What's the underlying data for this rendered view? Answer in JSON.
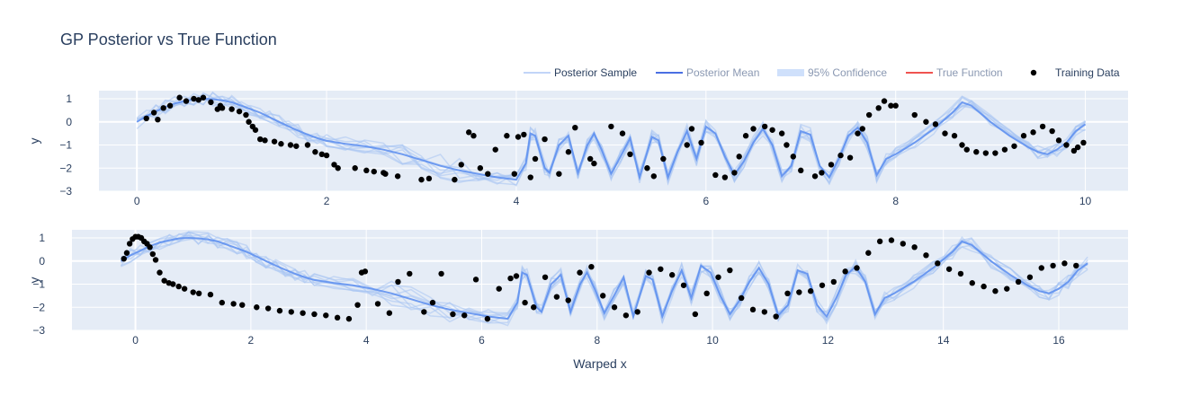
{
  "chart_data": {
    "type": "line",
    "title": "GP Posterior vs True Function",
    "legend": {
      "placement": "top-right",
      "items": [
        {
          "label": "Posterior Sample",
          "color": "#aec7f5",
          "style": "line-faint",
          "active": true
        },
        {
          "label": "Posterior Mean",
          "color": "#4a6fe3",
          "style": "line",
          "active": false
        },
        {
          "label": "95% Confidence",
          "color": "#cfe0fb",
          "style": "band",
          "active": false
        },
        {
          "label": "True Function",
          "color": "#ef5350",
          "style": "line",
          "active": false
        },
        {
          "label": "Training Data",
          "color": "#000000",
          "style": "marker",
          "active": true
        }
      ]
    },
    "panels": [
      {
        "xlabel": "",
        "ylabel": "y",
        "xlim": [
          -0.4,
          10.45
        ],
        "ylim": [
          -3,
          1.35
        ],
        "xticks": [
          0,
          2,
          4,
          6,
          8,
          10
        ],
        "yticks": [
          1,
          0,
          -1,
          -2,
          -3
        ],
        "grid": true
      },
      {
        "xlabel": "Warped x",
        "ylabel": "y",
        "xlim": [
          -1.1,
          17.2
        ],
        "ylim": [
          -3,
          1.35
        ],
        "xticks": [
          0,
          2,
          4,
          6,
          8,
          10,
          12,
          14,
          16
        ],
        "yticks": [
          1,
          0,
          -1,
          -2,
          -3
        ],
        "grid": true
      }
    ],
    "mean_curve": {
      "x": [
        0,
        0.1,
        0.2,
        0.3,
        0.4,
        0.5,
        0.6,
        0.7,
        0.8,
        0.9,
        1.0,
        1.1,
        1.2,
        1.3,
        1.4,
        1.5,
        1.6,
        1.7,
        1.8,
        1.9,
        2.0,
        2.2,
        2.4,
        2.6,
        2.8,
        3.0,
        3.2,
        3.4,
        3.6,
        3.8,
        4.0,
        4.1,
        4.15,
        4.2,
        4.3,
        4.35,
        4.45,
        4.55,
        4.65,
        4.75,
        4.82,
        4.9,
        5.0,
        5.1,
        5.2,
        5.3,
        5.43,
        5.5,
        5.6,
        5.7,
        5.8,
        5.9,
        6.0,
        6.1,
        6.2,
        6.3,
        6.4,
        6.5,
        6.6,
        6.7,
        6.8,
        6.9,
        7.0,
        7.1,
        7.2,
        7.3,
        7.4,
        7.5,
        7.6,
        7.7,
        7.8,
        7.9,
        8.0,
        8.2,
        8.4,
        8.6,
        8.7,
        8.8,
        9.0,
        9.2,
        9.4,
        9.5,
        9.6,
        9.7,
        9.8,
        9.9,
        10.0
      ],
      "y": [
        0.0,
        0.25,
        0.45,
        0.65,
        0.8,
        0.9,
        0.98,
        1.0,
        0.98,
        0.93,
        0.85,
        0.7,
        0.55,
        0.4,
        0.2,
        0.0,
        -0.2,
        -0.38,
        -0.55,
        -0.7,
        -0.82,
        -0.95,
        -1.05,
        -1.2,
        -1.4,
        -1.65,
        -1.9,
        -2.1,
        -2.25,
        -2.4,
        -2.5,
        -1.8,
        -0.5,
        -0.6,
        -2.0,
        -2.2,
        -1.0,
        -0.6,
        -2.2,
        -1.0,
        -0.5,
        -1.2,
        -2.25,
        -1.5,
        -0.7,
        -2.4,
        -0.65,
        -0.8,
        -2.4,
        -1.3,
        -0.4,
        -1.6,
        -0.2,
        -0.5,
        -1.5,
        -2.3,
        -1.7,
        -0.9,
        -0.3,
        -1.0,
        -2.35,
        -1.9,
        -0.4,
        -0.55,
        -1.9,
        -2.4,
        -1.6,
        -0.6,
        -0.25,
        -0.9,
        -2.3,
        -1.6,
        -1.4,
        -0.9,
        -0.3,
        0.4,
        0.85,
        0.7,
        0.0,
        -0.6,
        -1.1,
        -1.3,
        -1.4,
        -1.2,
        -0.9,
        -0.4,
        -0.1
      ]
    },
    "training_data_panel1": {
      "x": [
        0.1,
        0.18,
        0.22,
        0.28,
        0.35,
        0.45,
        0.52,
        0.6,
        0.65,
        0.7,
        0.78,
        0.85,
        0.88,
        0.9,
        1.0,
        1.08,
        1.15,
        1.18,
        1.22,
        1.25,
        1.3,
        1.35,
        1.45,
        1.52,
        1.62,
        1.68,
        1.8,
        1.88,
        1.95,
        2.0,
        2.08,
        2.12,
        2.3,
        2.42,
        2.5,
        2.6,
        2.62,
        2.75,
        3.0,
        3.08,
        3.35,
        3.42,
        3.5,
        3.55,
        3.62,
        3.7,
        3.78,
        3.9,
        3.98,
        4.02,
        4.08,
        4.15,
        4.2,
        4.3,
        4.45,
        4.55,
        4.62,
        4.78,
        4.82,
        5.0,
        5.12,
        5.2,
        5.38,
        5.45,
        5.55,
        5.8,
        5.85,
        5.95,
        6.1,
        6.2,
        6.3,
        6.35,
        6.42,
        6.5,
        6.62,
        6.7,
        6.8,
        6.85,
        6.92,
        7.0,
        7.15,
        7.22,
        7.32,
        7.42,
        7.52,
        7.6,
        7.65,
        7.72,
        7.82,
        7.88,
        7.95,
        8.0,
        8.2,
        8.32,
        8.42,
        8.52,
        8.62,
        8.7,
        8.75,
        8.85,
        8.95,
        9.05,
        9.15,
        9.25,
        9.35,
        9.45,
        9.55,
        9.65,
        9.72,
        9.8,
        9.88,
        9.92,
        9.98
      ],
      "y": [
        0.15,
        0.4,
        0.1,
        0.6,
        0.7,
        1.05,
        0.9,
        1.0,
        0.95,
        1.05,
        0.85,
        0.55,
        0.7,
        0.6,
        0.55,
        0.45,
        0.3,
        0.0,
        -0.2,
        -0.35,
        -0.75,
        -0.8,
        -0.85,
        -0.95,
        -1.0,
        -1.05,
        -1.0,
        -1.3,
        -1.4,
        -1.45,
        -1.85,
        -2.0,
        -2.0,
        -2.1,
        -2.15,
        -2.2,
        -2.25,
        -2.35,
        -2.5,
        -2.45,
        -2.5,
        -1.85,
        -0.45,
        -0.6,
        -2.0,
        -2.25,
        -1.2,
        -0.6,
        -2.25,
        -0.65,
        -0.55,
        -2.4,
        -1.6,
        -0.75,
        -2.25,
        -1.3,
        -0.25,
        -1.6,
        -1.8,
        -0.2,
        -0.5,
        -1.4,
        -2.0,
        -2.35,
        -1.6,
        -1.0,
        -0.3,
        -0.9,
        -2.3,
        -2.4,
        -2.2,
        -1.5,
        -0.6,
        -0.3,
        -0.2,
        -0.35,
        -0.5,
        -1.0,
        -1.5,
        -2.1,
        -2.35,
        -2.2,
        -1.85,
        -1.45,
        -1.55,
        -0.5,
        -0.3,
        0.3,
        0.6,
        0.9,
        0.7,
        0.7,
        0.3,
        0.0,
        -0.1,
        -0.5,
        -0.6,
        -1.0,
        -1.2,
        -1.3,
        -1.35,
        -1.35,
        -1.2,
        -1.05,
        -0.6,
        -0.45,
        -0.2,
        -0.4,
        -0.8,
        -1.0,
        -1.25,
        -1.1,
        -0.9
      ]
    },
    "training_data_panel2": {
      "x": [
        -0.2,
        -0.15,
        -0.1,
        -0.05,
        0.0,
        0.05,
        0.1,
        0.15,
        0.2,
        0.25,
        0.3,
        0.35,
        0.42,
        0.5,
        0.58,
        0.65,
        0.75,
        0.85,
        1.0,
        1.1,
        1.3,
        1.5,
        1.7,
        1.85,
        2.1,
        2.3,
        2.5,
        2.7,
        2.9,
        3.1,
        3.3,
        3.5,
        3.7,
        3.85,
        3.92,
        3.98,
        4.2,
        4.4,
        4.55,
        4.75,
        5.0,
        5.15,
        5.3,
        5.5,
        5.7,
        5.9,
        6.1,
        6.3,
        6.5,
        6.6,
        6.75,
        6.9,
        7.1,
        7.3,
        7.5,
        7.7,
        7.9,
        8.1,
        8.3,
        8.5,
        8.7,
        8.9,
        9.1,
        9.3,
        9.5,
        9.7,
        9.9,
        10.1,
        10.3,
        10.5,
        10.7,
        10.9,
        11.1,
        11.3,
        11.5,
        11.7,
        11.9,
        12.1,
        12.3,
        12.5,
        12.7,
        12.9,
        13.1,
        13.3,
        13.5,
        13.7,
        13.9,
        14.1,
        14.3,
        14.5,
        14.7,
        14.9,
        15.1,
        15.3,
        15.5,
        15.7,
        15.9,
        16.1,
        16.3
      ],
      "y": [
        0.1,
        0.35,
        0.75,
        0.95,
        1.05,
        1.05,
        1.0,
        0.85,
        0.75,
        0.6,
        0.3,
        0.05,
        -0.5,
        -0.85,
        -0.95,
        -1.0,
        -1.1,
        -1.2,
        -1.35,
        -1.4,
        -1.45,
        -1.8,
        -1.85,
        -1.9,
        -2.0,
        -2.05,
        -2.15,
        -2.2,
        -2.25,
        -2.3,
        -2.35,
        -2.45,
        -2.5,
        -1.9,
        -0.5,
        -0.45,
        -1.85,
        -2.25,
        -0.9,
        -0.55,
        -2.2,
        -1.8,
        -0.55,
        -2.3,
        -2.35,
        -0.8,
        -2.5,
        -1.2,
        -0.75,
        -0.65,
        -1.8,
        -2.0,
        -0.7,
        -1.55,
        -1.7,
        -0.5,
        -0.25,
        -1.5,
        -2.0,
        -2.35,
        -2.2,
        -0.5,
        -0.35,
        -0.6,
        -1.05,
        -2.3,
        -1.4,
        -0.7,
        -0.4,
        -1.6,
        -2.1,
        -2.2,
        -2.4,
        -1.4,
        -1.35,
        -1.3,
        -1.05,
        -0.9,
        -0.45,
        -0.3,
        0.35,
        0.85,
        0.9,
        0.75,
        0.6,
        0.25,
        -0.1,
        -0.35,
        -0.55,
        -0.95,
        -1.1,
        -1.3,
        -1.2,
        -0.9,
        -0.7,
        -0.3,
        -0.2,
        -0.1,
        -0.2
      ]
    }
  }
}
